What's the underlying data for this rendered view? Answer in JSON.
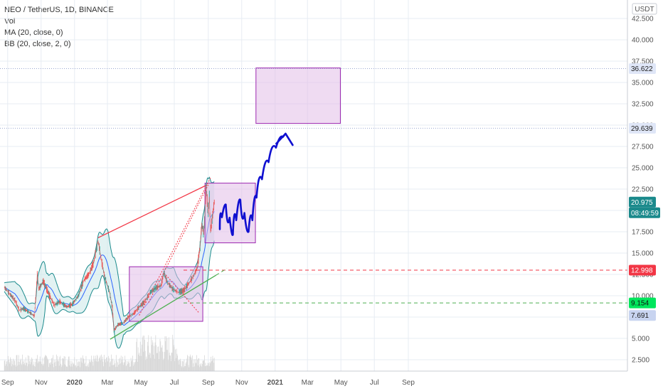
{
  "legend": {
    "symbol": "NEO / TetherUS, 1D, BINANCE",
    "vol": "Vol",
    "ma": "MA (20, close, 0)",
    "bb": "BB (20, close, 2, 0)"
  },
  "currency": "USDT",
  "colors": {
    "grid": "#e7ecf3",
    "price_line": "#1b8a8c",
    "bb_fill": "#cfe9ea",
    "ma": "#2962ff",
    "box_fill": "#e1bee7",
    "box_stroke": "#9c27b0",
    "red": "#f23645",
    "green": "#4caf50",
    "arrow": "#1010d0",
    "volume": "#d8d8d8"
  },
  "chart_data": {
    "type": "candlestick",
    "title": "NEO / TetherUS, 1D, BINANCE",
    "y_ticks": [
      2.5,
      5.0,
      7.5,
      10.0,
      12.5,
      15.0,
      17.5,
      20.0,
      22.5,
      25.0,
      27.5,
      30.0,
      32.5,
      35.0,
      37.5,
      40.0,
      42.5
    ],
    "y_tick_labels": [
      "2.500",
      "5.000",
      "7.500",
      "10.000",
      "12.500",
      "15.000",
      "17.500",
      "20.000",
      "22.500",
      "25.000",
      "27.500",
      "30.000",
      "32.500",
      "35.000",
      "37.500",
      "40.000",
      "42.500"
    ],
    "ylim": [
      1.5,
      45
    ],
    "x_ticks": [
      "Sep",
      "Nov",
      "2020",
      "Mar",
      "May",
      "Jul",
      "Sep",
      "Nov",
      "2021",
      "Mar",
      "May",
      "Jul",
      "Sep"
    ],
    "x_tick_bold": [
      false,
      false,
      true,
      false,
      false,
      false,
      false,
      false,
      true,
      false,
      false,
      false,
      false
    ],
    "x_tick_dates": [
      "2019-09-01",
      "2019-11-01",
      "2020-01-01",
      "2020-03-01",
      "2020-05-01",
      "2020-07-01",
      "2020-09-01",
      "2020-11-01",
      "2021-01-01",
      "2021-03-01",
      "2021-05-01",
      "2021-07-01",
      "2021-09-01"
    ],
    "price_series": [
      [
        "2019-08-26",
        11.0
      ],
      [
        "2019-09-05",
        10.2
      ],
      [
        "2019-09-15",
        9.4
      ],
      [
        "2019-09-22",
        8.3
      ],
      [
        "2019-09-30",
        8.5
      ],
      [
        "2019-10-12",
        8.0
      ],
      [
        "2019-10-20",
        7.6
      ],
      [
        "2019-10-25",
        12.4
      ],
      [
        "2019-10-28",
        10.8
      ],
      [
        "2019-11-05",
        11.7
      ],
      [
        "2019-11-15",
        10.2
      ],
      [
        "2019-11-25",
        8.9
      ],
      [
        "2019-12-05",
        9.3
      ],
      [
        "2019-12-18",
        8.7
      ],
      [
        "2019-12-28",
        9.0
      ],
      [
        "2020-01-08",
        10.0
      ],
      [
        "2020-01-18",
        11.8
      ],
      [
        "2020-01-28",
        12.6
      ],
      [
        "2020-02-05",
        13.9
      ],
      [
        "2020-02-13",
        16.5
      ],
      [
        "2020-02-18",
        14.5
      ],
      [
        "2020-02-25",
        12.2
      ],
      [
        "2020-03-05",
        10.4
      ],
      [
        "2020-03-10",
        8.6
      ],
      [
        "2020-03-13",
        5.9
      ],
      [
        "2020-03-20",
        6.6
      ],
      [
        "2020-03-30",
        6.8
      ],
      [
        "2020-04-08",
        7.5
      ],
      [
        "2020-04-18",
        7.9
      ],
      [
        "2020-04-28",
        8.7
      ],
      [
        "2020-05-08",
        9.3
      ],
      [
        "2020-05-18",
        10.4
      ],
      [
        "2020-05-28",
        10.9
      ],
      [
        "2020-06-07",
        11.2
      ],
      [
        "2020-06-12",
        12.7
      ],
      [
        "2020-06-18",
        11.6
      ],
      [
        "2020-06-28",
        10.8
      ],
      [
        "2020-07-08",
        10.4
      ],
      [
        "2020-07-18",
        10.6
      ],
      [
        "2020-07-28",
        11.5
      ],
      [
        "2020-08-05",
        12.3
      ],
      [
        "2020-08-12",
        13.3
      ],
      [
        "2020-08-17",
        15.8
      ],
      [
        "2020-08-20",
        18.5
      ],
      [
        "2020-08-24",
        17.2
      ],
      [
        "2020-08-28",
        22.8
      ],
      [
        "2020-09-01",
        19.5
      ],
      [
        "2020-09-03",
        21.6
      ],
      [
        "2020-09-05",
        17.4
      ],
      [
        "2020-09-08",
        19.0
      ],
      [
        "2020-09-12",
        20.98
      ]
    ],
    "last_price": 20.975,
    "countdown": "08:49:59",
    "price_labels": [
      {
        "value": 36.622,
        "text": "36.622"
      },
      {
        "value": 29.639,
        "text": "29.639"
      },
      {
        "value": 20.975,
        "text": "20.975"
      },
      {
        "value": 12.998,
        "text": "12.998"
      },
      {
        "value": 9.154,
        "text": "9.154"
      },
      {
        "value": 7.691,
        "text": "7.691"
      }
    ],
    "levels": [
      {
        "value": 12.998,
        "style": "dashed",
        "color": "#f23645"
      },
      {
        "value": 9.154,
        "style": "dashed",
        "color": "#4caf50"
      },
      {
        "value": 36.622,
        "style": "dotted",
        "color": "#9aa7d0"
      },
      {
        "value": 29.639,
        "style": "dotted",
        "color": "#9aa7d0"
      }
    ],
    "boxes": [
      {
        "x0": "2020-04-10",
        "x1": "2020-08-22",
        "y0": 7.0,
        "y1": 13.4
      },
      {
        "x0": "2020-08-26",
        "x1": "2020-11-26",
        "y0": 16.2,
        "y1": 23.2
      },
      {
        "x0": "2020-11-27",
        "x1": "2021-04-30",
        "y0": 30.2,
        "y1": 36.7
      }
    ],
    "trendlines": [
      {
        "x0": "2020-02-13",
        "y0": 16.8,
        "x1": "2020-08-30",
        "y1": 23.0,
        "color": "#f23645",
        "style": "solid"
      },
      {
        "x0": "2020-03-06",
        "y0": 4.9,
        "x1": "2020-09-15",
        "y1": 12.4,
        "color": "#4caf50",
        "style": "solid"
      },
      {
        "x0": "2020-09-15",
        "y0": 12.4,
        "x1": "2020-10-05",
        "y1": 13.2,
        "color": "#4caf50",
        "style": "dashed"
      },
      {
        "x0": "2020-04-28",
        "y0": 7.7,
        "x1": "2020-09-05",
        "y1": 23.8,
        "color": "#f23645",
        "style": "dotted"
      },
      {
        "x0": "2020-05-15",
        "y0": 9.2,
        "x1": "2020-09-01",
        "y1": 23.0,
        "color": "#f23645",
        "style": "dotted"
      },
      {
        "x0": "2020-06-12",
        "y0": 12.7,
        "x1": "2020-08-15",
        "y1": 8.0,
        "color": "#f23645",
        "style": "dotted"
      }
    ]
  }
}
